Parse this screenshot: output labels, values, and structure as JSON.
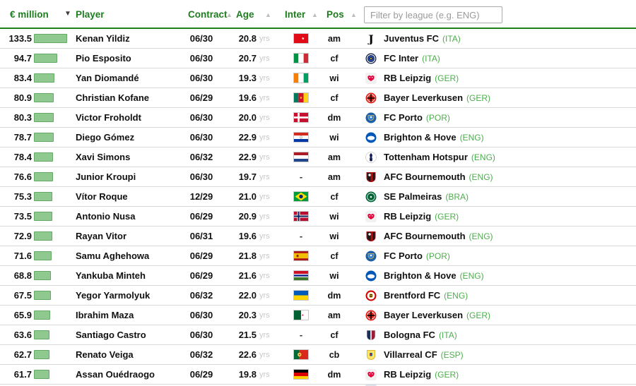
{
  "header": {
    "value_label": "€ million",
    "player_label": "Player",
    "contract_label": "Contract",
    "age_label": "Age",
    "inter_label": "Inter",
    "pos_label": "Pos",
    "sort_desc_icon": "▼",
    "sort_asc_icon": "▲",
    "filter_placeholder": "Filter by league (e.g. ENG)"
  },
  "colors": {
    "header_green": "#1e7e1e",
    "bar_fill": "#8fc98f",
    "bar_border": "#63a963",
    "league_green": "#4cae4c"
  },
  "table": {
    "age_unit": "yrs",
    "no_flag_text": "-",
    "max_value": 133.5,
    "rows": [
      {
        "value": "133.5",
        "player": "Kenan Yildiz",
        "contract": "06/30",
        "age": "20.8",
        "flag": "tur",
        "pos": "am",
        "club": "Juventus FC",
        "league": "(ITA)",
        "logo": "juventus"
      },
      {
        "value": "94.7",
        "player": "Pio Esposito",
        "contract": "06/30",
        "age": "20.7",
        "flag": "ita",
        "pos": "cf",
        "club": "FC Inter",
        "league": "(ITA)",
        "logo": "inter"
      },
      {
        "value": "83.4",
        "player": "Yan Diomandé",
        "contract": "06/30",
        "age": "19.3",
        "flag": "civ",
        "pos": "wi",
        "club": "RB Leipzig",
        "league": "(GER)",
        "logo": "leipzig"
      },
      {
        "value": "80.9",
        "player": "Christian Kofane",
        "contract": "06/29",
        "age": "19.6",
        "flag": "cmr",
        "pos": "cf",
        "club": "Bayer Leverkusen",
        "league": "(GER)",
        "logo": "leverkusen"
      },
      {
        "value": "80.3",
        "player": "Victor Froholdt",
        "contract": "06/30",
        "age": "20.0",
        "flag": "den",
        "pos": "dm",
        "club": "FC Porto",
        "league": "(POR)",
        "logo": "porto"
      },
      {
        "value": "78.7",
        "player": "Diego Gómez",
        "contract": "06/30",
        "age": "22.9",
        "flag": "par",
        "pos": "wi",
        "club": "Brighton & Hove",
        "league": "(ENG)",
        "logo": "brighton"
      },
      {
        "value": "78.4",
        "player": "Xavi Simons",
        "contract": "06/32",
        "age": "22.9",
        "flag": "ned",
        "pos": "am",
        "club": "Tottenham Hotspur",
        "league": "(ENG)",
        "logo": "tottenham"
      },
      {
        "value": "76.6",
        "player": "Junior Kroupi",
        "contract": "06/30",
        "age": "19.7",
        "flag": "",
        "pos": "am",
        "club": "AFC Bournemouth",
        "league": "(ENG)",
        "logo": "bournemouth"
      },
      {
        "value": "75.3",
        "player": "Vítor Roque",
        "contract": "12/29",
        "age": "21.0",
        "flag": "bra",
        "pos": "cf",
        "club": "SE Palmeiras",
        "league": "(BRA)",
        "logo": "palmeiras"
      },
      {
        "value": "73.5",
        "player": "Antonio Nusa",
        "contract": "06/29",
        "age": "20.9",
        "flag": "nor",
        "pos": "wi",
        "club": "RB Leipzig",
        "league": "(GER)",
        "logo": "leipzig"
      },
      {
        "value": "72.9",
        "player": "Rayan Vitor",
        "contract": "06/31",
        "age": "19.6",
        "flag": "",
        "pos": "wi",
        "club": "AFC Bournemouth",
        "league": "(ENG)",
        "logo": "bournemouth"
      },
      {
        "value": "71.6",
        "player": "Samu Aghehowa",
        "contract": "06/29",
        "age": "21.8",
        "flag": "esp",
        "pos": "cf",
        "club": "FC Porto",
        "league": "(POR)",
        "logo": "porto"
      },
      {
        "value": "68.8",
        "player": "Yankuba Minteh",
        "contract": "06/29",
        "age": "21.6",
        "flag": "gam",
        "pos": "wi",
        "club": "Brighton & Hove",
        "league": "(ENG)",
        "logo": "brighton"
      },
      {
        "value": "67.5",
        "player": "Yegor Yarmolyuk",
        "contract": "06/32",
        "age": "22.0",
        "flag": "ukr",
        "pos": "dm",
        "club": "Brentford FC",
        "league": "(ENG)",
        "logo": "brentford"
      },
      {
        "value": "65.9",
        "player": "Ibrahim Maza",
        "contract": "06/30",
        "age": "20.3",
        "flag": "alg",
        "pos": "am",
        "club": "Bayer Leverkusen",
        "league": "(GER)",
        "logo": "leverkusen"
      },
      {
        "value": "63.6",
        "player": "Santiago Castro",
        "contract": "06/30",
        "age": "21.5",
        "flag": "",
        "pos": "cf",
        "club": "Bologna FC",
        "league": "(ITA)",
        "logo": "bologna"
      },
      {
        "value": "62.7",
        "player": "Renato Veiga",
        "contract": "06/32",
        "age": "22.6",
        "flag": "por",
        "pos": "cb",
        "club": "Villarreal CF",
        "league": "(ESP)",
        "logo": "villarreal"
      },
      {
        "value": "61.7",
        "player": "Assan Ouédraogo",
        "contract": "06/29",
        "age": "19.8",
        "flag": "ger",
        "pos": "dm",
        "club": "RB Leipzig",
        "league": "(GER)",
        "logo": "leipzig"
      }
    ]
  }
}
